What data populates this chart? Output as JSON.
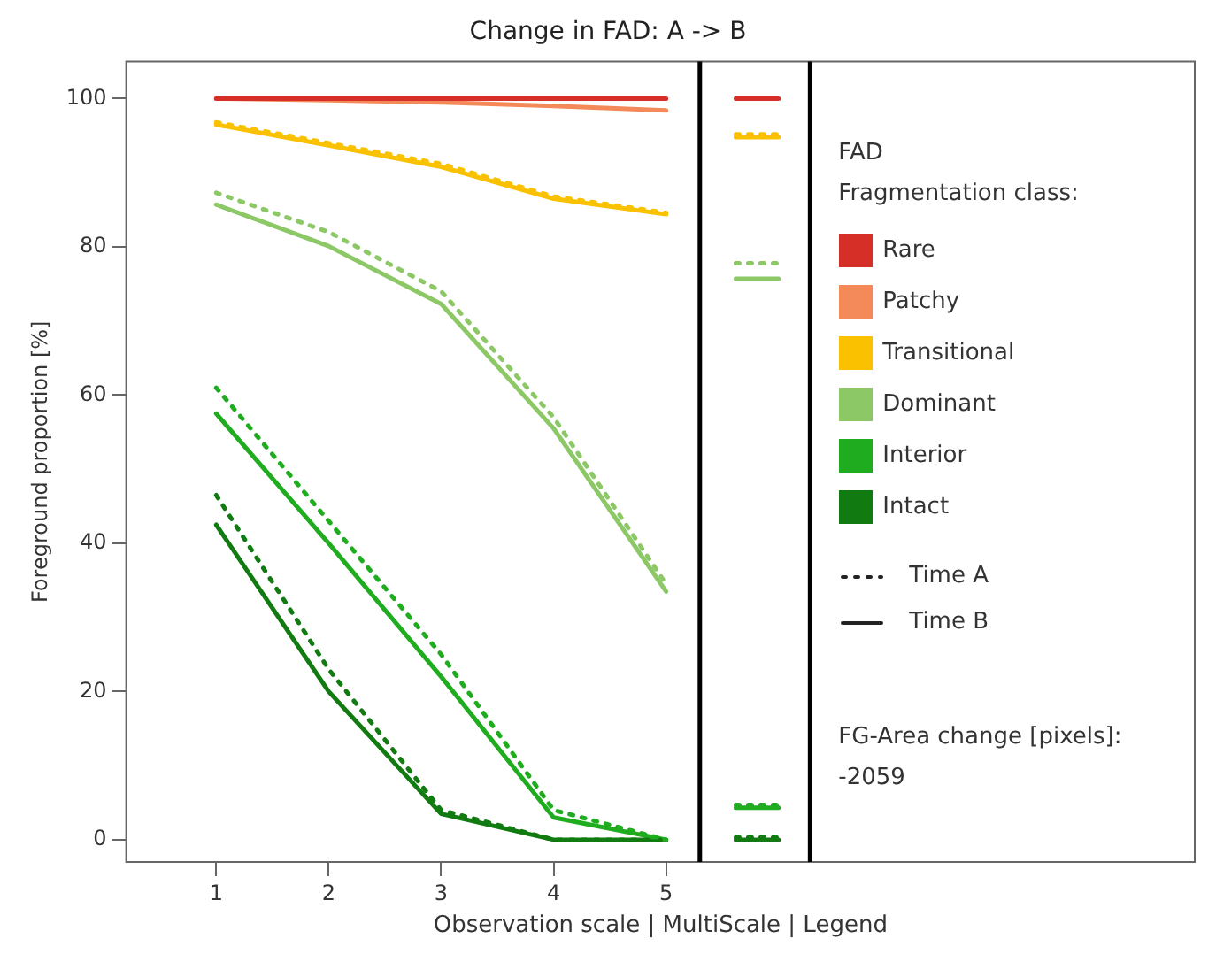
{
  "chart_data": {
    "type": "line",
    "title": "Change in FAD: A -> B",
    "xlabel": "Observation scale | MultiScale | Legend",
    "ylabel": "Foreground proportion [%]",
    "legend_title": "FAD\nFragmentation class:",
    "legend": "right",
    "marker": "none",
    "grid": false,
    "xlim": [
      0.2,
      9.7
    ],
    "xticks": [
      1,
      2,
      3,
      4,
      5
    ],
    "ylim": [
      -3,
      105
    ],
    "yticks": [
      0,
      20,
      40,
      60,
      80,
      100
    ],
    "ref_lines": [
      {
        "axis": "x",
        "value": 5.3,
        "color": "#000000"
      },
      {
        "axis": "x",
        "value": 6.28,
        "color": "#000000"
      }
    ],
    "annotations": [
      "Time A",
      "Time B",
      "FG-Area change [pixels]:\n-2059"
    ],
    "series": [
      {
        "color": "#f9c100",
        "line_style": "dotted",
        "x": [
          1,
          2,
          3,
          4,
          5
        ],
        "values": [
          96.8,
          94,
          91.2,
          86.8,
          84.6
        ]
      },
      {
        "color": "#8cc866",
        "line_style": "dotted",
        "x": [
          1,
          2,
          3,
          4,
          5
        ],
        "values": [
          87.3,
          82,
          74,
          57,
          34.5
        ]
      },
      {
        "color": "#1fac1f",
        "line_style": "dotted",
        "x": [
          1,
          2,
          3,
          4,
          5
        ],
        "values": [
          61,
          43,
          25,
          4,
          0
        ]
      },
      {
        "color": "#117a11",
        "line_style": "dotted",
        "x": [
          1,
          2,
          3,
          4,
          5
        ],
        "values": [
          46.5,
          23,
          4,
          0,
          0
        ]
      },
      {
        "name": "Rare",
        "color": "#d62f27",
        "line_style": "solid",
        "x": [
          1,
          2,
          3,
          4,
          5
        ],
        "values": [
          100,
          100,
          100,
          100,
          100
        ]
      },
      {
        "name": "Patchy",
        "color": "#f4895a",
        "line_style": "solid",
        "x": [
          1,
          2,
          3,
          4,
          5
        ],
        "values": [
          100,
          99.8,
          99.5,
          99,
          98.4
        ]
      },
      {
        "name": "Transitional",
        "color": "#f9c100",
        "line_style": "solid",
        "x": [
          1,
          2,
          3,
          4,
          5
        ],
        "values": [
          96.5,
          93.7,
          90.8,
          86.5,
          84.4
        ]
      },
      {
        "name": "Dominant",
        "color": "#8cc866",
        "line_style": "solid",
        "x": [
          1,
          2,
          3,
          4,
          5
        ],
        "values": [
          85.7,
          80.1,
          72.3,
          55.5,
          33.5
        ]
      },
      {
        "name": "Interior",
        "color": "#1fac1f",
        "line_style": "solid",
        "x": [
          1,
          2,
          3,
          4,
          5
        ],
        "values": [
          57.5,
          40,
          22,
          3,
          0
        ]
      },
      {
        "name": "Intact",
        "color": "#117a11",
        "line_style": "solid",
        "x": [
          1,
          2,
          3,
          4,
          5
        ],
        "values": [
          42.5,
          20,
          3.5,
          0,
          0
        ]
      },
      {
        "color": "#d62f27",
        "line_style": "solid",
        "x": [
          5.62,
          6.0
        ],
        "values": [
          100,
          100
        ]
      },
      {
        "color": "#f9c100",
        "line_style": "solid",
        "x": [
          5.62,
          6.0
        ],
        "values": [
          94.8,
          94.8
        ]
      },
      {
        "color": "#f9c100",
        "line_style": "dotted",
        "x": [
          5.62,
          6.0
        ],
        "values": [
          95.2,
          95.2
        ]
      },
      {
        "color": "#8cc866",
        "line_style": "dotted",
        "x": [
          5.62,
          6.0
        ],
        "values": [
          77.8,
          77.8
        ]
      },
      {
        "color": "#8cc866",
        "line_style": "solid",
        "x": [
          5.62,
          6.0
        ],
        "values": [
          75.7,
          75.7
        ]
      },
      {
        "color": "#1fac1f",
        "line_style": "solid",
        "x": [
          5.62,
          6.0
        ],
        "values": [
          4.3,
          4.3
        ]
      },
      {
        "color": "#1fac1f",
        "line_style": "dotted",
        "x": [
          5.62,
          6.0
        ],
        "values": [
          4.7,
          4.7
        ]
      },
      {
        "color": "#117a11",
        "line_style": "solid",
        "x": [
          5.62,
          6.0
        ],
        "values": [
          0,
          0
        ]
      },
      {
        "color": "#117a11",
        "line_style": "dotted",
        "x": [
          5.62,
          6.0
        ],
        "values": [
          0.3,
          0.3
        ]
      }
    ]
  }
}
